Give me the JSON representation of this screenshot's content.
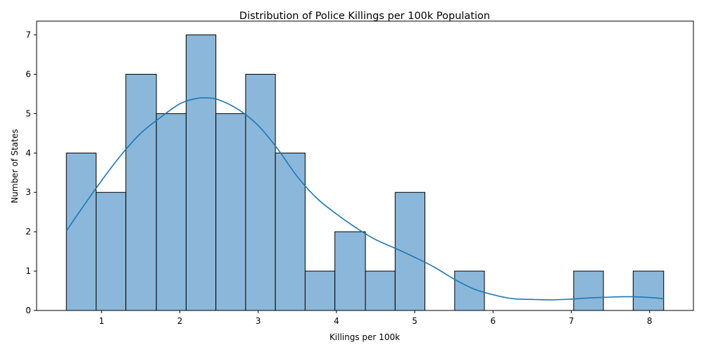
{
  "chart_data": {
    "type": "bar",
    "title": "Distribution of Police Killings per 100k Population",
    "xlabel": "Killings per 100k",
    "ylabel": "Number of States",
    "bin_edges": [
      0.55,
      0.93,
      1.31,
      1.7,
      2.08,
      2.46,
      2.84,
      3.22,
      3.6,
      3.98,
      4.37,
      4.75,
      5.13,
      5.51,
      5.89,
      6.27,
      6.65,
      7.03,
      7.41,
      7.79,
      8.18
    ],
    "values": [
      4,
      3,
      6,
      5,
      7,
      5,
      6,
      4,
      1,
      2,
      1,
      3,
      0,
      1,
      0,
      0,
      0,
      1,
      0,
      1
    ],
    "kde": {
      "x": [
        0.55,
        0.75,
        1.0,
        1.25,
        1.5,
        1.75,
        2.0,
        2.2,
        2.35,
        2.5,
        2.75,
        3.0,
        3.25,
        3.5,
        3.75,
        4.0,
        4.25,
        4.5,
        4.75,
        5.0,
        5.25,
        5.5,
        5.75,
        6.0,
        6.25,
        6.5,
        6.75,
        7.0,
        7.25,
        7.5,
        7.75,
        8.0,
        8.18
      ],
      "y": [
        2.02,
        2.6,
        3.3,
        3.95,
        4.5,
        4.9,
        5.25,
        5.38,
        5.4,
        5.35,
        5.1,
        4.7,
        4.1,
        3.4,
        2.85,
        2.45,
        2.1,
        1.8,
        1.58,
        1.35,
        1.1,
        0.8,
        0.55,
        0.4,
        0.3,
        0.28,
        0.27,
        0.29,
        0.32,
        0.34,
        0.35,
        0.33,
        0.3
      ]
    },
    "xticks": [
      1,
      2,
      3,
      4,
      5,
      6,
      7,
      8
    ],
    "yticks": [
      0,
      1,
      2,
      3,
      4,
      5,
      6,
      7
    ],
    "xlim": [
      0.17,
      8.56
    ],
    "ylim": [
      0,
      7.35
    ],
    "grid": false,
    "colors": {
      "bar_fill": "#8bb8da",
      "bar_edge": "#000000",
      "kde_line": "#1f77b4"
    }
  }
}
